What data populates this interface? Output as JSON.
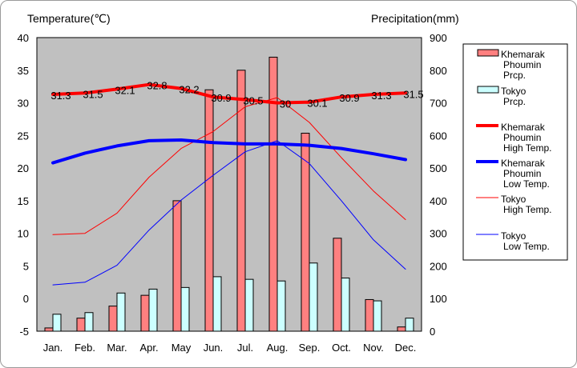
{
  "chart_data": {
    "type": "bar+line",
    "categories": [
      "Jan.",
      "Feb.",
      "Mar.",
      "Apr.",
      "May",
      "Jun.",
      "Jul.",
      "Aug.",
      "Sep.",
      "Oct.",
      "Nov.",
      "Dec."
    ],
    "left_axis": {
      "title": "Temperature(℃)",
      "range": [
        -5,
        40
      ],
      "ticks": [
        -5,
        0,
        5,
        10,
        15,
        20,
        25,
        30,
        35,
        40
      ]
    },
    "right_axis": {
      "title": "Precipitation(mm)",
      "range": [
        0,
        900
      ],
      "ticks": [
        0,
        100,
        200,
        300,
        400,
        500,
        600,
        700,
        800,
        900
      ]
    },
    "bar_series": [
      {
        "name": "Khemarak Phoumin Prcp.",
        "legend_lines": [
          "Khemarak",
          "Phoumin",
          "Prcp."
        ],
        "color": "#ff8080",
        "values": [
          10,
          40,
          77,
          110,
          400,
          740,
          800,
          840,
          607,
          285,
          97,
          13
        ]
      },
      {
        "name": "Tokyo Prcp.",
        "legend_lines": [
          "Tokyo",
          "Prcp."
        ],
        "color": "#ccffff",
        "values": [
          52,
          57,
          117,
          129,
          134,
          167,
          159,
          154,
          209,
          163,
          93,
          40
        ]
      }
    ],
    "line_series": [
      {
        "name": "Khemarak Phoumin High Temp.",
        "legend_lines": [
          "Khemarak",
          "Phoumin",
          "High Temp."
        ],
        "color": "#ff0000",
        "width": 4,
        "values": [
          31.3,
          31.5,
          32.1,
          32.8,
          32.2,
          30.9,
          30.5,
          30.0,
          30.1,
          30.9,
          31.3,
          31.5
        ],
        "labels": [
          "31.3",
          "31.5",
          "32.1",
          "32.8",
          "32.2",
          "30.9",
          "30.5",
          "30",
          "30.1",
          "30.9",
          "31.3",
          "31.5"
        ]
      },
      {
        "name": "Khemarak Phoumin Low Temp.",
        "legend_lines": [
          "Khemarak",
          "Phoumin",
          "Low Temp."
        ],
        "color": "#0000ff",
        "width": 4,
        "values": [
          20.8,
          22.3,
          23.4,
          24.2,
          24.3,
          23.9,
          23.7,
          23.7,
          23.5,
          23.0,
          22.2,
          21.3
        ]
      },
      {
        "name": "Tokyo High Temp.",
        "legend_lines": [
          "Tokyo",
          "High Temp."
        ],
        "color": "#ff0000",
        "width": 1,
        "values": [
          9.8,
          10.0,
          13.1,
          18.6,
          23.0,
          25.6,
          29.4,
          30.8,
          27.0,
          21.6,
          16.5,
          12.1
        ]
      },
      {
        "name": "Tokyo Low Temp.",
        "legend_lines": [
          "Tokyo",
          "Low Temp."
        ],
        "color": "#0000ff",
        "width": 1,
        "values": [
          2.1,
          2.5,
          5.1,
          10.5,
          15.1,
          18.9,
          22.5,
          24.2,
          20.7,
          15.0,
          9.0,
          4.5
        ]
      }
    ],
    "grid": false,
    "legend_position": "right"
  }
}
